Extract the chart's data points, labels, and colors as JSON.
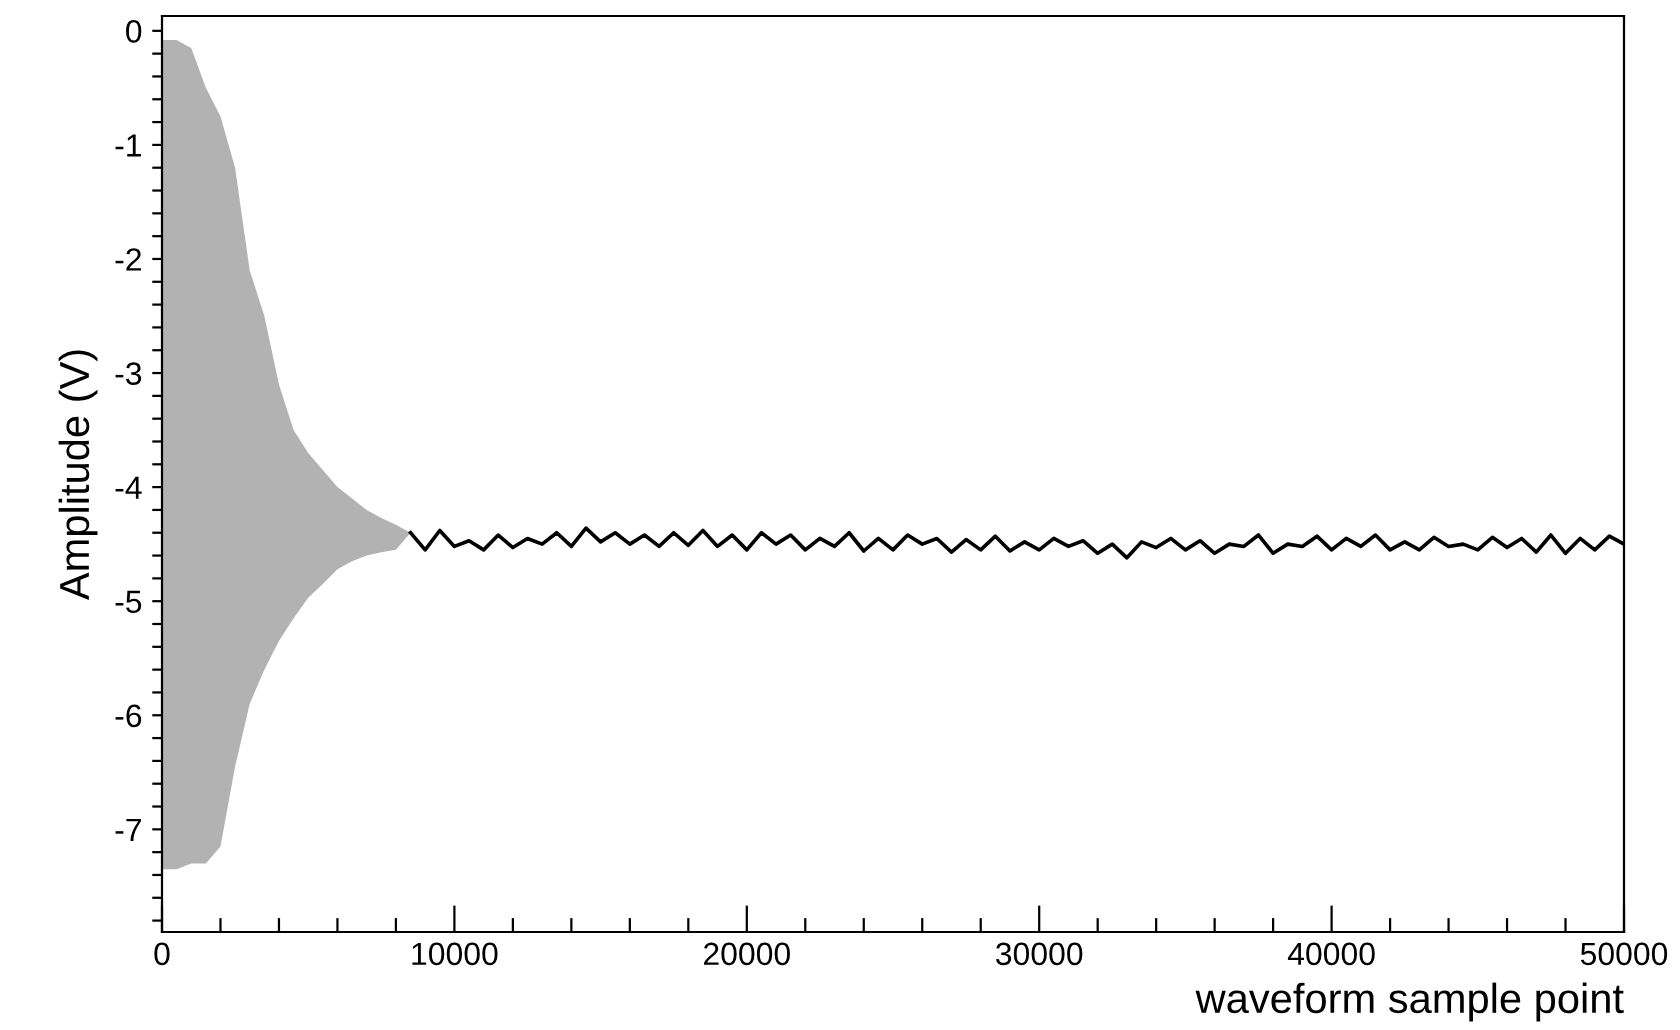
{
  "chart_data": {
    "type": "line",
    "xlabel": "waveform sample point",
    "ylabel": "Amplitude (V)",
    "xlim": [
      0,
      50000
    ],
    "ylim": [
      -7.9,
      0.13
    ],
    "xticks": [
      0,
      {
        "value": 2000,
        "label": null
      },
      {
        "value": 4000,
        "label": null
      },
      {
        "value": 6000,
        "label": null
      },
      {
        "value": 8000,
        "label": null
      },
      10000,
      {
        "value": 12000,
        "label": null
      },
      {
        "value": 14000,
        "label": null
      },
      {
        "value": 16000,
        "label": null
      },
      {
        "value": 18000,
        "label": null
      },
      20000,
      {
        "value": 22000,
        "label": null
      },
      {
        "value": 24000,
        "label": null
      },
      {
        "value": 26000,
        "label": null
      },
      {
        "value": 28000,
        "label": null
      },
      30000,
      {
        "value": 32000,
        "label": null
      },
      {
        "value": 34000,
        "label": null
      },
      {
        "value": 36000,
        "label": null
      },
      {
        "value": 38000,
        "label": null
      },
      40000,
      {
        "value": 42000,
        "label": null
      },
      {
        "value": 44000,
        "label": null
      },
      {
        "value": 46000,
        "label": null
      },
      {
        "value": 48000,
        "label": null
      },
      50000
    ],
    "yticks": [
      {
        "value": -7.8,
        "label": null
      },
      {
        "value": -7.6,
        "label": null
      },
      {
        "value": -7.4,
        "label": null
      },
      {
        "value": -7.2,
        "label": null
      },
      -7,
      {
        "value": -6.8,
        "label": null
      },
      {
        "value": -6.6,
        "label": null
      },
      {
        "value": -6.4,
        "label": null
      },
      {
        "value": -6.2,
        "label": null
      },
      -6,
      {
        "value": -5.8,
        "label": null
      },
      {
        "value": -5.6,
        "label": null
      },
      {
        "value": -5.4,
        "label": null
      },
      {
        "value": -5.2,
        "label": null
      },
      -5,
      {
        "value": -4.8,
        "label": null
      },
      {
        "value": -4.6,
        "label": null
      },
      {
        "value": -4.4,
        "label": null
      },
      {
        "value": -4.2,
        "label": null
      },
      -4,
      {
        "value": -3.8,
        "label": null
      },
      {
        "value": -3.6,
        "label": null
      },
      {
        "value": -3.4,
        "label": null
      },
      {
        "value": -3.2,
        "label": null
      },
      -3,
      {
        "value": -2.8,
        "label": null
      },
      {
        "value": -2.6,
        "label": null
      },
      {
        "value": -2.4,
        "label": null
      },
      {
        "value": -2.2,
        "label": null
      },
      -2,
      {
        "value": -1.8,
        "label": null
      },
      {
        "value": -1.6,
        "label": null
      },
      {
        "value": -1.4,
        "label": null
      },
      {
        "value": -1.2,
        "label": null
      },
      -1,
      {
        "value": -0.8,
        "label": null
      },
      {
        "value": -0.6,
        "label": null
      },
      {
        "value": -0.4,
        "label": null
      },
      {
        "value": -0.2,
        "label": null
      },
      0
    ],
    "grid": false,
    "legend": false,
    "line_style": "solid",
    "series": [
      {
        "color": "#000000",
        "x": [
          0,
          500,
          1000,
          1500,
          2000,
          2500,
          3000,
          3500,
          4000,
          4500,
          5000,
          5500,
          6000,
          6500,
          7000,
          7500,
          8000,
          8500,
          9000,
          9500,
          10000,
          10500,
          11000,
          11500,
          12000,
          12500,
          13000,
          13500,
          14000,
          14500,
          15000,
          15500,
          16000,
          16500,
          17000,
          17500,
          18000,
          18500,
          19000,
          19500,
          20000,
          20500,
          21000,
          21500,
          22000,
          22500,
          23000,
          23500,
          24000,
          24500,
          25000,
          25500,
          26000,
          26500,
          27000,
          27500,
          28000,
          28500,
          29000,
          29500,
          30000,
          30500,
          31000,
          31500,
          32000,
          32500,
          33000,
          33500,
          34000,
          34500,
          35000,
          35500,
          36000,
          36500,
          37000,
          37500,
          38000,
          38500,
          39000,
          39500,
          40000,
          40500,
          41000,
          41500,
          42000,
          42500,
          43000,
          43500,
          44000,
          44500,
          45000,
          45500,
          46000,
          46500,
          47000,
          47500,
          48000,
          48500,
          49000,
          49500,
          50000
        ],
        "values": [
          null,
          null,
          null,
          null,
          null,
          null,
          null,
          null,
          null,
          null,
          null,
          null,
          null,
          null,
          null,
          null,
          null,
          -4.4,
          -4.55,
          -4.38,
          -4.52,
          -4.47,
          -4.55,
          -4.42,
          -4.53,
          -4.45,
          -4.5,
          -4.4,
          -4.52,
          -4.36,
          -4.48,
          -4.4,
          -4.5,
          -4.42,
          -4.52,
          -4.4,
          -4.51,
          -4.38,
          -4.52,
          -4.42,
          -4.55,
          -4.4,
          -4.5,
          -4.42,
          -4.55,
          -4.45,
          -4.52,
          -4.4,
          -4.56,
          -4.45,
          -4.55,
          -4.42,
          -4.5,
          -4.45,
          -4.57,
          -4.46,
          -4.55,
          -4.43,
          -4.56,
          -4.48,
          -4.55,
          -4.45,
          -4.52,
          -4.47,
          -4.58,
          -4.5,
          -4.62,
          -4.48,
          -4.53,
          -4.45,
          -4.55,
          -4.47,
          -4.58,
          -4.5,
          -4.52,
          -4.42,
          -4.58,
          -4.5,
          -4.52,
          -4.43,
          -4.55,
          -4.45,
          -4.52,
          -4.42,
          -4.55,
          -4.48,
          -4.55,
          -4.44,
          -4.52,
          -4.5,
          -4.55,
          -4.44,
          -4.53,
          -4.45,
          -4.57,
          -4.42,
          -4.58,
          -4.45,
          -4.55,
          -4.43,
          -4.5
        ],
        "upper": [
          -0.08,
          -0.08,
          -0.15,
          -0.5,
          -0.75,
          -1.2,
          -2.1,
          -2.5,
          -3.1,
          -3.5,
          -3.7,
          -3.85,
          -4.0,
          -4.1,
          -4.2,
          -4.27,
          -4.33,
          -4.4,
          null,
          null,
          null,
          null,
          null,
          null,
          null,
          null,
          null,
          null,
          null,
          null,
          null,
          null,
          null,
          null,
          null,
          null,
          null,
          null,
          null,
          null,
          null,
          null,
          null,
          null,
          null,
          null,
          null,
          null,
          null,
          null,
          null,
          null,
          null,
          null,
          null,
          null,
          null,
          null,
          null,
          null,
          null,
          null,
          null,
          null,
          null,
          null,
          null,
          null,
          null,
          null,
          null,
          null,
          null,
          null,
          null,
          null,
          null,
          null,
          null,
          null,
          null,
          null,
          null,
          null,
          null,
          null,
          null,
          null,
          null,
          null,
          null,
          null,
          null,
          null,
          null,
          null,
          null,
          null,
          null,
          null,
          null
        ],
        "lower": [
          -7.35,
          -7.35,
          -7.3,
          -7.3,
          -7.15,
          -6.45,
          -5.9,
          -5.6,
          -5.35,
          -5.15,
          -4.97,
          -4.85,
          -4.72,
          -4.65,
          -4.6,
          -4.57,
          -4.55,
          -4.4,
          null,
          null,
          null,
          null,
          null,
          null,
          null,
          null,
          null,
          null,
          null,
          null,
          null,
          null,
          null,
          null,
          null,
          null,
          null,
          null,
          null,
          null,
          null,
          null,
          null,
          null,
          null,
          null,
          null,
          null,
          null,
          null,
          null,
          null,
          null,
          null,
          null,
          null,
          null,
          null,
          null,
          null,
          null,
          null,
          null,
          null,
          null,
          null,
          null,
          null,
          null,
          null,
          null,
          null,
          null,
          null,
          null,
          null,
          null,
          null,
          null,
          null,
          null,
          null,
          null,
          null,
          null,
          null,
          null,
          null,
          null,
          null,
          null,
          null,
          null,
          null,
          null,
          null,
          null,
          null,
          null,
          null,
          null
        ]
      }
    ]
  }
}
